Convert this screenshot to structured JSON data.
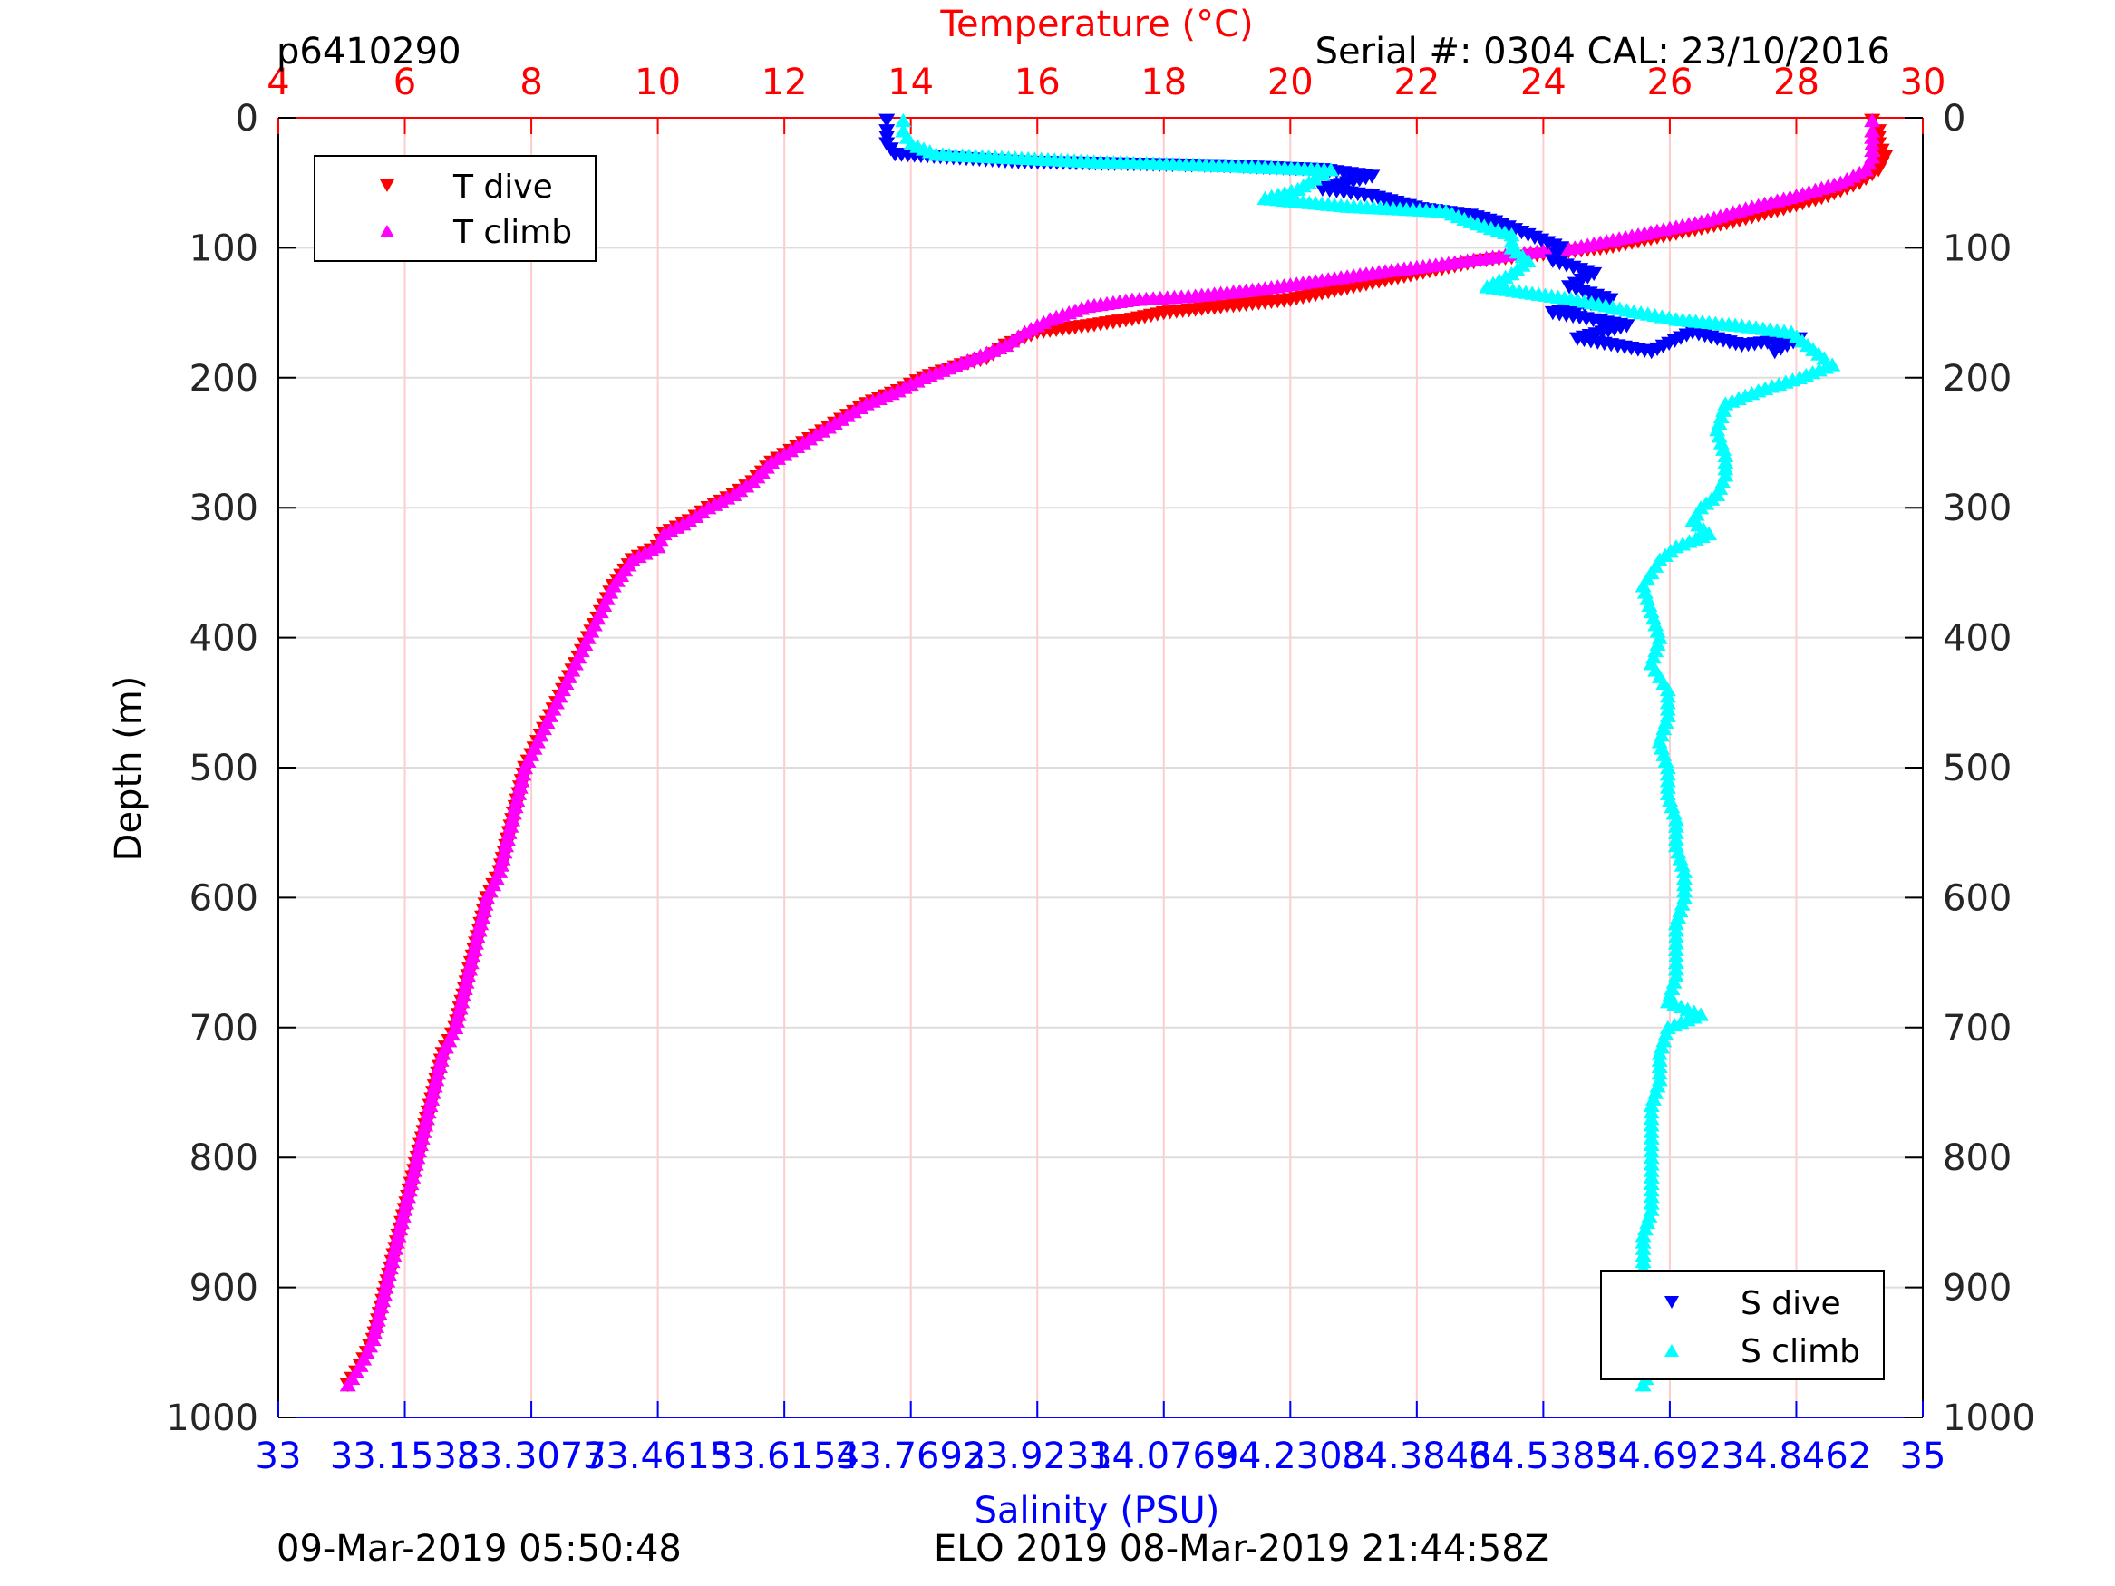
{
  "header": {
    "profile_id": "p6410290",
    "serial_cal": "Serial #: 0304  CAL: 23/10/2016"
  },
  "footer": {
    "left_timestamp": "09-Mar-2019 05:50:48",
    "center_text": "ELO 2019 08-Mar-2019 21:44:58Z"
  },
  "legend_temperature": {
    "dive_label": "T dive",
    "climb_label": "T climb"
  },
  "legend_salinity": {
    "dive_label": "S dive",
    "climb_label": "S climb"
  },
  "colors": {
    "t_dive": "#ff0000",
    "t_climb": "#ff00ff",
    "s_dive": "#0000ff",
    "s_climb": "#00ffff",
    "temp_axis": "#ff0000",
    "sal_axis": "#0000ff",
    "grid_temp": "#ffcccc",
    "grid_depth": "#dddddd"
  },
  "chart_data": {
    "type": "scatter",
    "title": "Temperature (°C)",
    "xlabel": "Salinity (PSU)",
    "ylabel": "Depth (m)",
    "depth_range": [
      0,
      1000
    ],
    "depth_ticks": [
      "0",
      "100",
      "200",
      "300",
      "400",
      "500",
      "600",
      "700",
      "800",
      "900",
      "1000"
    ],
    "temperature_range": [
      4,
      30
    ],
    "temperature_ticks": [
      "4",
      "6",
      "8",
      "10",
      "12",
      "14",
      "16",
      "18",
      "20",
      "22",
      "24",
      "26",
      "28",
      "30"
    ],
    "salinity_range": [
      33,
      35
    ],
    "salinity_ticks": [
      "33",
      "33.1538",
      "33.3077",
      "33.4615",
      "33.6154",
      "33.7692",
      "33.9231",
      "34.0769",
      "34.2308",
      "34.3846",
      "34.5385",
      "34.6923",
      "34.8462",
      "35"
    ],
    "grid": true,
    "legend_positions": {
      "temperature": "top-left",
      "salinity": "bottom-right"
    },
    "series": [
      {
        "name": "T dive",
        "marker": "triangle-down",
        "points": [
          [
            29.2,
            2
          ],
          [
            29.3,
            10
          ],
          [
            29.3,
            20
          ],
          [
            29.4,
            30
          ],
          [
            29.3,
            40
          ],
          [
            29,
            50
          ],
          [
            28.5,
            60
          ],
          [
            27.8,
            70
          ],
          [
            27,
            80
          ],
          [
            26,
            90
          ],
          [
            25,
            100
          ],
          [
            24,
            105
          ],
          [
            23,
            110
          ],
          [
            22,
            120
          ],
          [
            21,
            130
          ],
          [
            20,
            140
          ],
          [
            19,
            145
          ],
          [
            18,
            150
          ],
          [
            17.5,
            155
          ],
          [
            16.8,
            160
          ],
          [
            16,
            165
          ],
          [
            15.5,
            175
          ],
          [
            15.2,
            185
          ],
          [
            14.8,
            190
          ],
          [
            14.2,
            200
          ],
          [
            13.8,
            210
          ],
          [
            13.3,
            220
          ],
          [
            12.8,
            235
          ],
          [
            12.3,
            250
          ],
          [
            11.8,
            265
          ],
          [
            11.5,
            280
          ],
          [
            11.2,
            290
          ],
          [
            10.8,
            300
          ],
          [
            10.5,
            310
          ],
          [
            10.1,
            320
          ],
          [
            10,
            330
          ],
          [
            9.6,
            340
          ],
          [
            9.3,
            360
          ],
          [
            9.1,
            380
          ],
          [
            8.9,
            400
          ],
          [
            8.7,
            420
          ],
          [
            8.5,
            440
          ],
          [
            8.3,
            460
          ],
          [
            8.1,
            480
          ],
          [
            7.9,
            500
          ],
          [
            7.8,
            520
          ],
          [
            7.7,
            540
          ],
          [
            7.6,
            560
          ],
          [
            7.5,
            580
          ],
          [
            7.3,
            600
          ],
          [
            7.2,
            620
          ],
          [
            7.1,
            640
          ],
          [
            7,
            660
          ],
          [
            6.9,
            680
          ],
          [
            6.8,
            700
          ],
          [
            6.6,
            720
          ],
          [
            6.5,
            740
          ],
          [
            6.4,
            760
          ],
          [
            6.3,
            780
          ],
          [
            6.2,
            800
          ],
          [
            6.1,
            820
          ],
          [
            6,
            840
          ],
          [
            5.9,
            860
          ],
          [
            5.8,
            880
          ],
          [
            5.7,
            900
          ],
          [
            5.6,
            920
          ],
          [
            5.5,
            940
          ],
          [
            5.4,
            950
          ],
          [
            5.3,
            960
          ],
          [
            5.1,
            975
          ]
        ]
      },
      {
        "name": "T climb",
        "marker": "triangle-up",
        "points": [
          [
            29.2,
            2
          ],
          [
            29.2,
            10
          ],
          [
            29.2,
            20
          ],
          [
            29.2,
            30
          ],
          [
            29.1,
            40
          ],
          [
            28.7,
            50
          ],
          [
            28,
            60
          ],
          [
            27.2,
            70
          ],
          [
            26.5,
            80
          ],
          [
            25.5,
            90
          ],
          [
            24.5,
            100
          ],
          [
            23.5,
            105
          ],
          [
            22.5,
            112
          ],
          [
            21.5,
            118
          ],
          [
            20.5,
            125
          ],
          [
            19.5,
            132
          ],
          [
            18.5,
            137
          ],
          [
            17.5,
            140
          ],
          [
            16.8,
            145
          ],
          [
            16.5,
            150
          ],
          [
            16.2,
            155
          ],
          [
            15.8,
            165
          ],
          [
            15.5,
            175
          ],
          [
            15,
            185
          ],
          [
            14.2,
            200
          ],
          [
            13.8,
            210
          ],
          [
            13.3,
            220
          ],
          [
            12.8,
            235
          ],
          [
            12.3,
            250
          ],
          [
            11.8,
            265
          ],
          [
            11.5,
            280
          ],
          [
            11.2,
            290
          ],
          [
            10.8,
            300
          ],
          [
            10.5,
            310
          ],
          [
            10.1,
            320
          ],
          [
            10,
            330
          ],
          [
            9.6,
            340
          ],
          [
            9.3,
            360
          ],
          [
            9.1,
            380
          ],
          [
            8.9,
            400
          ],
          [
            8.7,
            420
          ],
          [
            8.5,
            440
          ],
          [
            8.3,
            460
          ],
          [
            8.1,
            480
          ],
          [
            7.9,
            500
          ],
          [
            7.8,
            520
          ],
          [
            7.7,
            540
          ],
          [
            7.6,
            560
          ],
          [
            7.5,
            580
          ],
          [
            7.3,
            600
          ],
          [
            7.2,
            620
          ],
          [
            7.1,
            640
          ],
          [
            7,
            660
          ],
          [
            6.9,
            680
          ],
          [
            6.8,
            700
          ],
          [
            6.6,
            720
          ],
          [
            6.5,
            740
          ],
          [
            6.4,
            760
          ],
          [
            6.3,
            780
          ],
          [
            6.2,
            800
          ],
          [
            6.1,
            820
          ],
          [
            6,
            840
          ],
          [
            5.9,
            860
          ],
          [
            5.8,
            880
          ],
          [
            5.7,
            900
          ],
          [
            5.6,
            920
          ],
          [
            5.5,
            940
          ],
          [
            5.4,
            950
          ],
          [
            5.3,
            960
          ],
          [
            5.1,
            975
          ]
        ]
      },
      {
        "name": "S dive",
        "marker": "triangle-down",
        "points": [
          [
            33.74,
            2
          ],
          [
            33.74,
            10
          ],
          [
            33.74,
            20
          ],
          [
            33.75,
            28
          ],
          [
            33.9,
            34
          ],
          [
            34.15,
            37
          ],
          [
            34.27,
            40
          ],
          [
            34.33,
            45
          ],
          [
            34.3,
            50
          ],
          [
            34.27,
            55
          ],
          [
            34.33,
            60
          ],
          [
            34.39,
            70
          ],
          [
            34.45,
            75
          ],
          [
            34.48,
            80
          ],
          [
            34.52,
            90
          ],
          [
            34.56,
            100
          ],
          [
            34.55,
            110
          ],
          [
            34.6,
            120
          ],
          [
            34.57,
            130
          ],
          [
            34.62,
            140
          ],
          [
            34.55,
            150
          ],
          [
            34.64,
            160
          ],
          [
            34.58,
            170
          ],
          [
            34.67,
            180
          ],
          [
            34.72,
            165
          ],
          [
            34.78,
            175
          ],
          [
            34.85,
            170
          ],
          [
            34.82,
            180
          ]
        ]
      },
      {
        "name": "S climb",
        "marker": "triangle-up",
        "points": [
          [
            33.76,
            2
          ],
          [
            33.76,
            10
          ],
          [
            33.77,
            20
          ],
          [
            33.8,
            28
          ],
          [
            34.0,
            34
          ],
          [
            34.16,
            37
          ],
          [
            34.28,
            40
          ],
          [
            34.26,
            47
          ],
          [
            34.24,
            55
          ],
          [
            34.2,
            62
          ],
          [
            34.3,
            68
          ],
          [
            34.42,
            72
          ],
          [
            34.45,
            80
          ],
          [
            34.5,
            90
          ],
          [
            34.5,
            100
          ],
          [
            34.52,
            110
          ],
          [
            34.5,
            120
          ],
          [
            34.47,
            130
          ],
          [
            34.58,
            140
          ],
          [
            34.64,
            148
          ],
          [
            34.7,
            155
          ],
          [
            34.78,
            160
          ],
          [
            34.84,
            165
          ],
          [
            34.86,
            175
          ],
          [
            34.88,
            185
          ],
          [
            34.89,
            190
          ],
          [
            34.85,
            200
          ],
          [
            34.8,
            210
          ],
          [
            34.76,
            220
          ],
          [
            34.75,
            240
          ],
          [
            34.76,
            260
          ],
          [
            34.76,
            275
          ],
          [
            34.75,
            290
          ],
          [
            34.73,
            300
          ],
          [
            34.72,
            310
          ],
          [
            34.74,
            320
          ],
          [
            34.7,
            330
          ],
          [
            34.68,
            340
          ],
          [
            34.66,
            360
          ],
          [
            34.67,
            380
          ],
          [
            34.68,
            400
          ],
          [
            34.67,
            420
          ],
          [
            34.69,
            440
          ],
          [
            34.69,
            460
          ],
          [
            34.68,
            480
          ],
          [
            34.69,
            500
          ],
          [
            34.69,
            520
          ],
          [
            34.7,
            540
          ],
          [
            34.7,
            560
          ],
          [
            34.71,
            580
          ],
          [
            34.71,
            600
          ],
          [
            34.7,
            620
          ],
          [
            34.7,
            640
          ],
          [
            34.7,
            660
          ],
          [
            34.69,
            680
          ],
          [
            34.73,
            690
          ],
          [
            34.69,
            700
          ],
          [
            34.68,
            720
          ],
          [
            34.68,
            740
          ],
          [
            34.67,
            760
          ],
          [
            34.67,
            780
          ],
          [
            34.67,
            800
          ],
          [
            34.67,
            820
          ],
          [
            34.67,
            840
          ],
          [
            34.66,
            860
          ],
          [
            34.66,
            880
          ],
          [
            34.66,
            900
          ],
          [
            34.67,
            920
          ],
          [
            34.68,
            940
          ],
          [
            34.67,
            960
          ],
          [
            34.66,
            975
          ]
        ]
      }
    ]
  }
}
